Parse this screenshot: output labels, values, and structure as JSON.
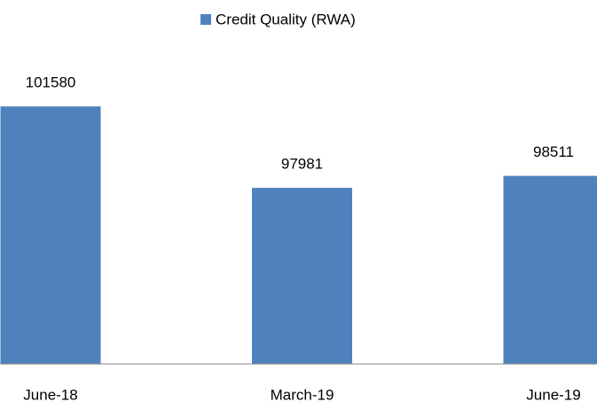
{
  "chart_data": {
    "type": "bar",
    "categories": [
      "June-18",
      "March-19",
      "June-19"
    ],
    "series": [
      {
        "name": "Credit Quality (RWA)",
        "color": "#4f81bd",
        "values": [
          101580,
          97981,
          98511
        ]
      }
    ],
    "ylim": [
      90200,
      105500
    ],
    "legend": "top"
  }
}
